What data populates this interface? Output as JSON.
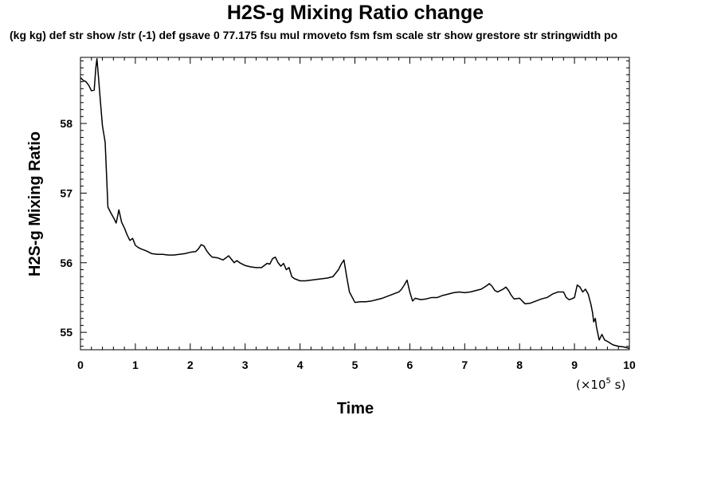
{
  "chart_data": {
    "type": "line",
    "title": "H2S-g Mixing Ratio change",
    "subtitle": "(kg kg) def str show /str (-1) def gsave 0 77.175 fsu mul rmoveto fsm fsm scale str show grestore str stringwidth po",
    "xlabel": "Time",
    "ylabel": "H2S-g Mixing Ratio",
    "x_unit": {
      "prefix": "(×10",
      "exponent": "5",
      "suffix": " s)"
    },
    "xlim": [
      0,
      10
    ],
    "ylim": [
      54.75,
      58.95
    ],
    "x_ticks": [
      "0",
      "1",
      "2",
      "3",
      "4",
      "5",
      "6",
      "7",
      "8",
      "9",
      "10"
    ],
    "y_ticks": [
      "55",
      "56",
      "57",
      "58"
    ],
    "grid": false,
    "series": [
      {
        "x": [
          0,
          0.05,
          0.1,
          0.15,
          0.2,
          0.25,
          0.28,
          0.3,
          0.33,
          0.36,
          0.4,
          0.45,
          0.5,
          0.55,
          0.6,
          0.65,
          0.68,
          0.7,
          0.75,
          0.8,
          0.85,
          0.9,
          0.95,
          1.0,
          1.05,
          1.1,
          1.2,
          1.3,
          1.4,
          1.5,
          1.6,
          1.7,
          1.8,
          1.9,
          2.0,
          2.1,
          2.15,
          2.2,
          2.25,
          2.3,
          2.35,
          2.4,
          2.5,
          2.6,
          2.7,
          2.75,
          2.8,
          2.85,
          2.9,
          3.0,
          3.1,
          3.2,
          3.3,
          3.4,
          3.45,
          3.5,
          3.55,
          3.6,
          3.65,
          3.7,
          3.75,
          3.8,
          3.85,
          3.9,
          4.0,
          4.1,
          4.2,
          4.3,
          4.4,
          4.5,
          4.6,
          4.7,
          4.75,
          4.8,
          4.85,
          4.9,
          5.0,
          5.1,
          5.2,
          5.3,
          5.4,
          5.5,
          5.6,
          5.7,
          5.8,
          5.85,
          5.9,
          5.95,
          6.0,
          6.05,
          6.1,
          6.2,
          6.3,
          6.4,
          6.5,
          6.6,
          6.7,
          6.8,
          6.9,
          7.0,
          7.1,
          7.2,
          7.3,
          7.4,
          7.45,
          7.5,
          7.55,
          7.6,
          7.7,
          7.75,
          7.8,
          7.85,
          7.9,
          8.0,
          8.1,
          8.2,
          8.3,
          8.4,
          8.5,
          8.6,
          8.7,
          8.8,
          8.85,
          8.9,
          8.95,
          9.0,
          9.05,
          9.1,
          9.15,
          9.2,
          9.25,
          9.3,
          9.33,
          9.35,
          9.38,
          9.4,
          9.45,
          9.5,
          9.55,
          9.6,
          9.7,
          9.8,
          9.9,
          10.0
        ],
        "y": [
          58.66,
          58.62,
          58.6,
          58.55,
          58.47,
          58.48,
          58.8,
          58.93,
          58.65,
          58.35,
          57.97,
          57.73,
          56.8,
          56.72,
          56.65,
          56.57,
          56.68,
          56.76,
          56.58,
          56.5,
          56.4,
          56.32,
          56.35,
          56.25,
          56.22,
          56.2,
          56.17,
          56.13,
          56.12,
          56.12,
          56.11,
          56.11,
          56.12,
          56.13,
          56.15,
          56.16,
          56.2,
          56.26,
          56.24,
          56.17,
          56.12,
          56.08,
          56.07,
          56.04,
          56.1,
          56.05,
          56.0,
          56.03,
          56.0,
          55.96,
          55.94,
          55.93,
          55.93,
          55.99,
          55.98,
          56.06,
          56.08,
          56.0,
          55.95,
          55.99,
          55.9,
          55.93,
          55.8,
          55.77,
          55.74,
          55.74,
          55.75,
          55.76,
          55.77,
          55.78,
          55.8,
          55.9,
          55.98,
          56.04,
          55.8,
          55.58,
          55.43,
          55.44,
          55.44,
          55.45,
          55.47,
          55.49,
          55.52,
          55.55,
          55.58,
          55.62,
          55.68,
          55.75,
          55.58,
          55.45,
          55.49,
          55.47,
          55.48,
          55.5,
          55.5,
          55.53,
          55.55,
          55.57,
          55.58,
          55.57,
          55.58,
          55.6,
          55.62,
          55.67,
          55.7,
          55.66,
          55.6,
          55.58,
          55.62,
          55.65,
          55.6,
          55.53,
          55.48,
          55.49,
          55.41,
          55.42,
          55.45,
          55.48,
          55.5,
          55.55,
          55.58,
          55.58,
          55.5,
          55.47,
          55.48,
          55.5,
          55.68,
          55.65,
          55.58,
          55.62,
          55.55,
          55.4,
          55.28,
          55.15,
          55.2,
          55.08,
          54.89,
          54.97,
          54.89,
          54.87,
          54.82,
          54.8,
          54.79,
          54.77
        ]
      }
    ]
  }
}
